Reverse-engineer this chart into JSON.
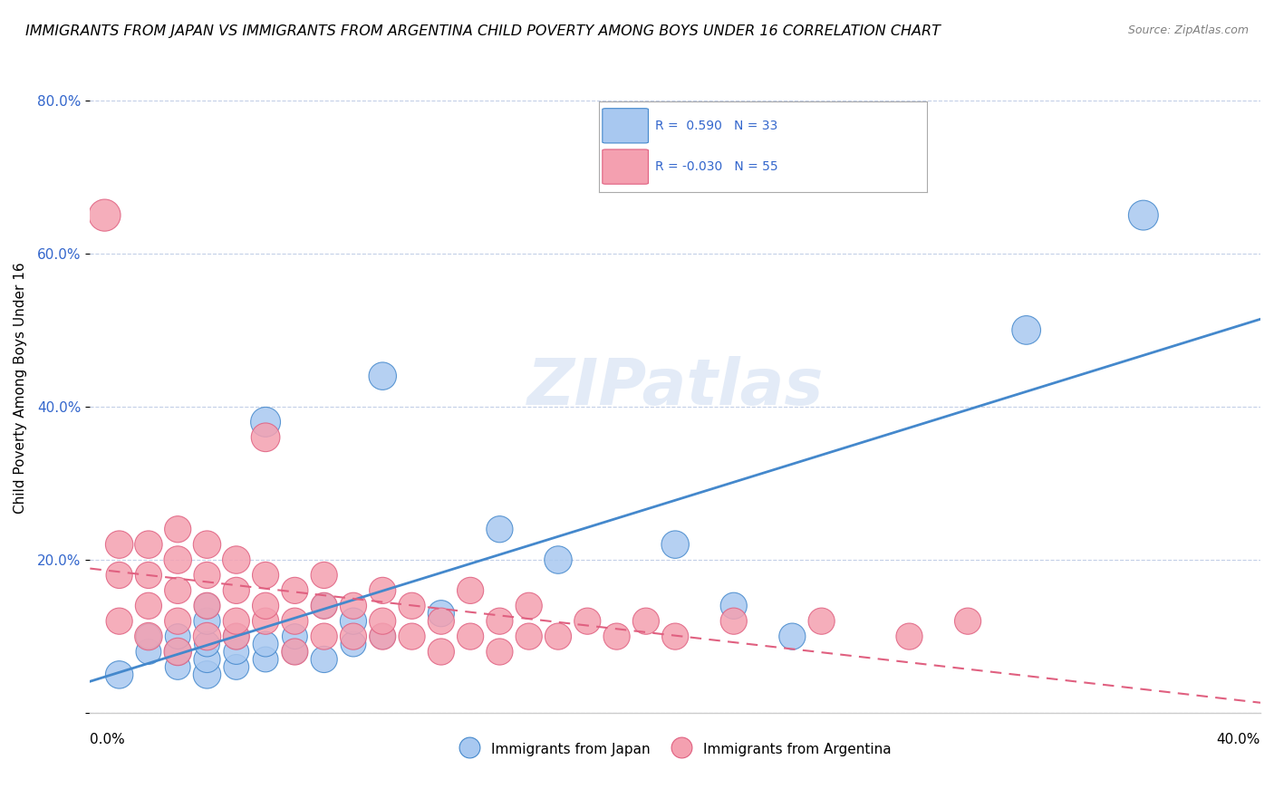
{
  "title": "IMMIGRANTS FROM JAPAN VS IMMIGRANTS FROM ARGENTINA CHILD POVERTY AMONG BOYS UNDER 16 CORRELATION CHART",
  "source": "Source: ZipAtlas.com",
  "ylabel": "Child Poverty Among Boys Under 16",
  "xlim": [
    0.0,
    0.4
  ],
  "ylim": [
    0.0,
    0.85
  ],
  "yticks": [
    0.0,
    0.2,
    0.4,
    0.6,
    0.8
  ],
  "ytick_labels": [
    "",
    "20.0%",
    "40.0%",
    "60.0%",
    "80.0%"
  ],
  "watermark": "ZIPatlas",
  "japan_color": "#a8c8f0",
  "argentina_color": "#f4a0b0",
  "japan_line_color": "#4488cc",
  "argentina_line_color": "#e06080",
  "japan_scatter": {
    "x": [
      0.01,
      0.02,
      0.02,
      0.03,
      0.03,
      0.03,
      0.04,
      0.04,
      0.04,
      0.04,
      0.04,
      0.05,
      0.05,
      0.05,
      0.06,
      0.06,
      0.06,
      0.07,
      0.07,
      0.08,
      0.08,
      0.09,
      0.09,
      0.1,
      0.1,
      0.12,
      0.14,
      0.16,
      0.2,
      0.22,
      0.24,
      0.32,
      0.36
    ],
    "y": [
      0.05,
      0.08,
      0.1,
      0.06,
      0.08,
      0.1,
      0.05,
      0.07,
      0.09,
      0.12,
      0.14,
      0.06,
      0.08,
      0.1,
      0.07,
      0.09,
      0.38,
      0.08,
      0.1,
      0.07,
      0.14,
      0.09,
      0.12,
      0.1,
      0.44,
      0.13,
      0.24,
      0.2,
      0.22,
      0.14,
      0.1,
      0.5,
      0.65
    ],
    "sizes": [
      60,
      50,
      50,
      50,
      55,
      50,
      60,
      55,
      50,
      55,
      50,
      50,
      50,
      50,
      50,
      50,
      70,
      50,
      50,
      55,
      50,
      50,
      55,
      50,
      60,
      55,
      55,
      60,
      60,
      55,
      55,
      65,
      70
    ]
  },
  "argentina_scatter": {
    "x": [
      0.005,
      0.01,
      0.01,
      0.01,
      0.02,
      0.02,
      0.02,
      0.02,
      0.03,
      0.03,
      0.03,
      0.03,
      0.03,
      0.04,
      0.04,
      0.04,
      0.04,
      0.05,
      0.05,
      0.05,
      0.05,
      0.06,
      0.06,
      0.06,
      0.06,
      0.07,
      0.07,
      0.07,
      0.08,
      0.08,
      0.08,
      0.09,
      0.09,
      0.1,
      0.1,
      0.1,
      0.11,
      0.11,
      0.12,
      0.12,
      0.13,
      0.13,
      0.14,
      0.14,
      0.15,
      0.15,
      0.16,
      0.17,
      0.18,
      0.19,
      0.2,
      0.22,
      0.25,
      0.28,
      0.3
    ],
    "y": [
      0.65,
      0.12,
      0.18,
      0.22,
      0.1,
      0.14,
      0.18,
      0.22,
      0.08,
      0.12,
      0.16,
      0.2,
      0.24,
      0.1,
      0.14,
      0.18,
      0.22,
      0.1,
      0.12,
      0.16,
      0.2,
      0.12,
      0.14,
      0.18,
      0.36,
      0.08,
      0.12,
      0.16,
      0.1,
      0.14,
      0.18,
      0.1,
      0.14,
      0.1,
      0.12,
      0.16,
      0.1,
      0.14,
      0.08,
      0.12,
      0.1,
      0.16,
      0.08,
      0.12,
      0.1,
      0.14,
      0.1,
      0.12,
      0.1,
      0.12,
      0.1,
      0.12,
      0.12,
      0.1,
      0.12
    ],
    "sizes": [
      80,
      55,
      55,
      60,
      60,
      55,
      55,
      60,
      60,
      55,
      55,
      60,
      55,
      60,
      55,
      55,
      60,
      55,
      55,
      55,
      60,
      55,
      55,
      55,
      65,
      55,
      55,
      55,
      55,
      55,
      55,
      55,
      55,
      55,
      55,
      55,
      55,
      55,
      55,
      55,
      55,
      55,
      55,
      55,
      55,
      55,
      55,
      55,
      55,
      55,
      55,
      55,
      55,
      55,
      55
    ]
  }
}
